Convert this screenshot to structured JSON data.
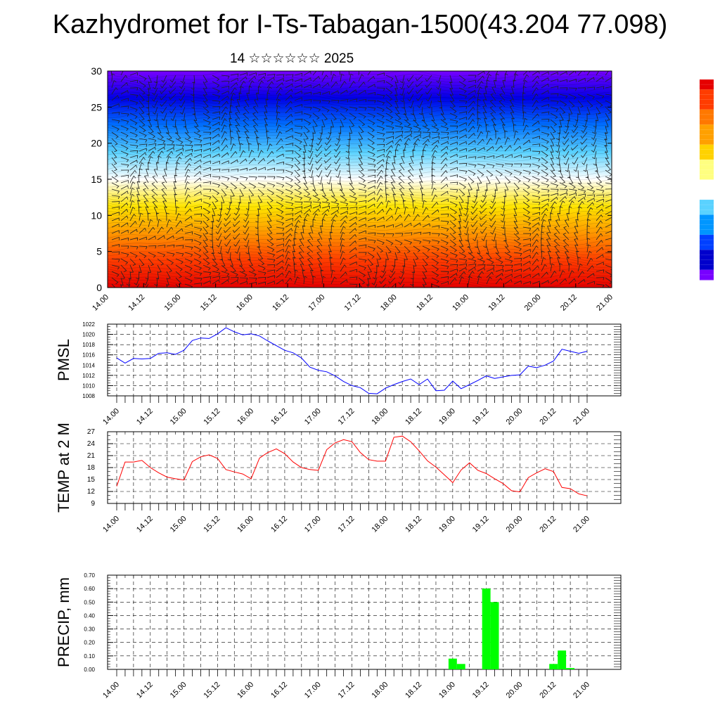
{
  "title": "Kazhydromet for I-Ts-Tabagan-1500(43.204 77.098)",
  "subtitle": "14 ☆☆☆☆☆☆ 2025",
  "colors": {
    "pmsl_line": "#0000ff",
    "temp_line": "#ff0000",
    "precip_bar": "#00ff00",
    "colorbar_top": "#e60000",
    "colorbar_bottom": "#7b00ff"
  },
  "chart_data": [
    {
      "type": "heatmap",
      "ylim": [
        0,
        30
      ],
      "yticks": [
        0,
        5,
        10,
        15,
        20,
        25,
        30
      ],
      "xticks": [
        "14.00",
        "14.12",
        "15.00",
        "15.12",
        "16.00",
        "16.12",
        "17.00",
        "17.12",
        "18.00",
        "18.12",
        "19.00",
        "19.12",
        "20.00",
        "20.12",
        "21.00"
      ],
      "colormap": [
        "#7800ff",
        "#0000e6",
        "#0070ff",
        "#5ad2ff",
        "#ffffff",
        "#ffe600",
        "#ff9600",
        "#ff3c00",
        "#e60000"
      ],
      "overlay": "wind barbs"
    },
    {
      "type": "line",
      "ylabel": "PMSL",
      "ylim": [
        1008,
        1022
      ],
      "yticks": [
        1008,
        1010,
        1012,
        1014,
        1016,
        1018,
        1020,
        1022
      ],
      "xticks": [
        "14.00",
        "14.12",
        "15.00",
        "15.12",
        "16.00",
        "16.12",
        "17.00",
        "17.12",
        "18.00",
        "18.12",
        "19.00",
        "19.12",
        "20.00",
        "20.12",
        "21.00"
      ],
      "grid": true,
      "series": [
        {
          "values": [
            1015.4,
            1014.4,
            1015.3,
            1015.2,
            1015.3,
            1016.3,
            1016.4,
            1016.1,
            1016.9,
            1018.8,
            1019.3,
            1019.2,
            1020.1,
            1021.3,
            1020.5,
            1019.9,
            1020.1,
            1019.7,
            1018.7,
            1017.8,
            1016.9,
            1016.4,
            1015.4,
            1013.6,
            1013.0,
            1012.7,
            1011.9,
            1010.8,
            1010.0,
            1009.6,
            1008.5,
            1008.4,
            1009.5,
            1010.2,
            1010.8,
            1011.3,
            1010.2,
            1011.3,
            1009.0,
            1009.1,
            1010.9,
            1009.4,
            1010.2,
            1011.0,
            1011.9,
            1011.4,
            1011.7,
            1012.0,
            1012.1,
            1013.8,
            1013.5,
            1014.0,
            1014.8,
            1017.1,
            1016.7,
            1016.3,
            1016.7
          ]
        }
      ]
    },
    {
      "type": "line",
      "ylabel": "TEMP at 2 M",
      "ylim": [
        9,
        27
      ],
      "yticks": [
        9,
        12,
        15,
        18,
        21,
        24,
        27
      ],
      "xticks": [
        "14.00",
        "14.12",
        "15.00",
        "15.12",
        "16.00",
        "16.12",
        "17.00",
        "17.12",
        "18.00",
        "18.12",
        "19.00",
        "19.12",
        "20.00",
        "20.12",
        "21.00"
      ],
      "grid": true,
      "series": [
        {
          "values": [
            13.3,
            19.4,
            19.4,
            19.8,
            18.0,
            16.7,
            15.6,
            15.2,
            14.9,
            19.5,
            20.7,
            21.2,
            20.3,
            17.5,
            16.9,
            16.4,
            15.2,
            20.4,
            21.8,
            22.7,
            21.5,
            19.4,
            18.0,
            17.5,
            17.3,
            22.5,
            24.2,
            25.0,
            24.5,
            21.8,
            20.0,
            19.6,
            19.6,
            25.6,
            25.9,
            24.5,
            22.2,
            19.7,
            18.1,
            16.2,
            14.2,
            17.4,
            19.2,
            17.3,
            16.5,
            15.2,
            14.0,
            12.2,
            11.9,
            15.5,
            16.7,
            17.7,
            17.0,
            13.0,
            12.7,
            11.4,
            10.9
          ]
        }
      ]
    },
    {
      "type": "bar",
      "ylabel": "PRECIP, mm",
      "ylim": [
        0,
        0.7
      ],
      "yticks": [
        "0.00",
        "0.10",
        "0.20",
        "0.30",
        "0.40",
        "0.50",
        "0.60",
        "0.70"
      ],
      "xticks": [
        "14.00",
        "14.12",
        "15.00",
        "15.12",
        "16.00",
        "16.12",
        "17.00",
        "17.12",
        "18.00",
        "18.12",
        "19.00",
        "19.12",
        "20.00",
        "20.12",
        "21.00"
      ],
      "grid": true,
      "series": [
        {
          "values": [
            0,
            0,
            0,
            0,
            0,
            0,
            0,
            0,
            0,
            0,
            0,
            0,
            0,
            0,
            0,
            0,
            0,
            0,
            0,
            0,
            0,
            0,
            0,
            0,
            0,
            0,
            0,
            0,
            0,
            0,
            0,
            0,
            0,
            0,
            0,
            0,
            0,
            0,
            0,
            0,
            0.08,
            0.04,
            0,
            0,
            0.6,
            0.5,
            0,
            0,
            0,
            0,
            0,
            0,
            0.04,
            0.14,
            0.01,
            0,
            0
          ]
        }
      ]
    }
  ]
}
